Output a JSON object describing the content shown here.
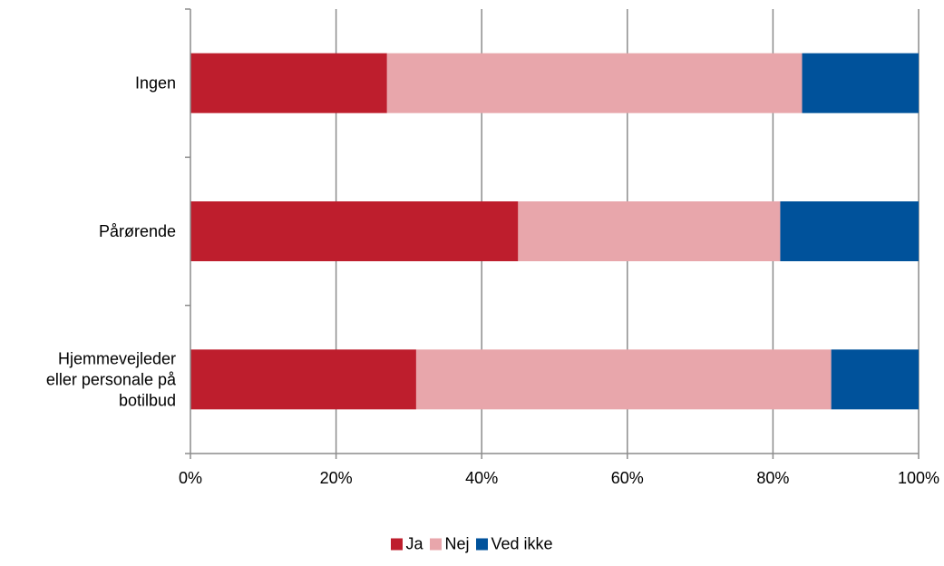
{
  "chart_data": {
    "type": "bar",
    "orientation": "horizontal",
    "stacked": "percent",
    "categories": [
      "Ingen",
      "Pårørende",
      "Hjemmevejleder eller personale på botilbud"
    ],
    "category_label_lines": [
      [
        "Ingen"
      ],
      [
        "Pårørende"
      ],
      [
        "Hjemmevejleder",
        "eller personale på",
        "botilbud"
      ]
    ],
    "series": [
      {
        "name": "Ja",
        "color": "#be1e2d",
        "values": [
          27,
          45,
          31
        ]
      },
      {
        "name": "Nej",
        "color": "#e8a6ab",
        "values": [
          57,
          36,
          57
        ]
      },
      {
        "name": "Ved ikke",
        "color": "#00529b",
        "values": [
          16,
          19,
          12
        ]
      }
    ],
    "xlim": [
      0,
      100
    ],
    "xticks": [
      "0%",
      "20%",
      "40%",
      "60%",
      "80%",
      "100%"
    ],
    "grid": true,
    "legend_position": "bottom",
    "xlabel": "",
    "ylabel": "",
    "title": ""
  }
}
